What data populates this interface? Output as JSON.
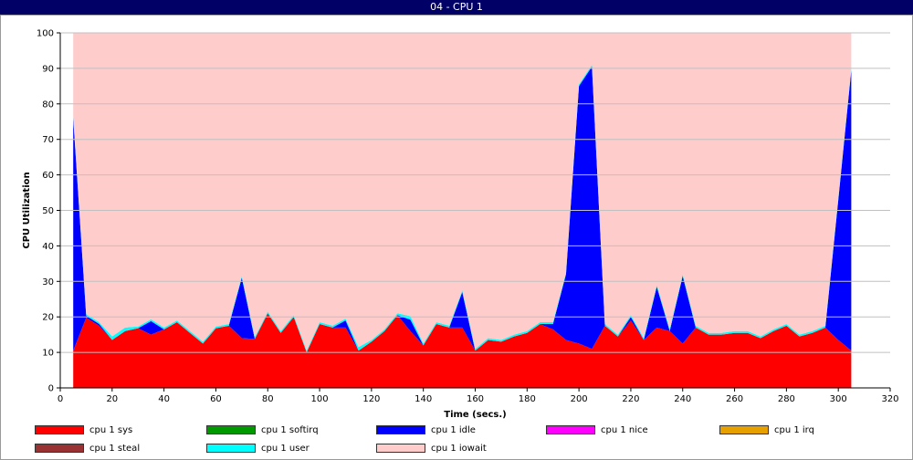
{
  "window": {
    "title": "04 - CPU 1"
  },
  "chart_data": {
    "type": "area",
    "stacked": true,
    "xlabel": "Time (secs.)",
    "ylabel": "CPU Utilization",
    "xlim": [
      0,
      320
    ],
    "ylim": [
      0,
      100
    ],
    "x_ticks": [
      0,
      20,
      40,
      60,
      80,
      100,
      120,
      140,
      160,
      180,
      200,
      220,
      240,
      260,
      280,
      300,
      320
    ],
    "y_ticks": [
      0,
      10,
      20,
      30,
      40,
      50,
      60,
      70,
      80,
      90,
      100
    ],
    "grid": true,
    "legend_position": "bottom",
    "x": [
      5,
      10,
      15,
      20,
      25,
      30,
      35,
      40,
      45,
      50,
      55,
      60,
      65,
      70,
      75,
      80,
      85,
      90,
      95,
      100,
      105,
      110,
      115,
      120,
      125,
      130,
      135,
      140,
      145,
      150,
      155,
      160,
      165,
      170,
      175,
      180,
      185,
      190,
      195,
      200,
      205,
      210,
      215,
      220,
      225,
      230,
      235,
      240,
      245,
      250,
      255,
      260,
      265,
      270,
      275,
      280,
      285,
      290,
      295,
      300,
      305
    ],
    "series": [
      {
        "name": "cpu 1 sys",
        "color": "#ff0000",
        "values": [
          10.5,
          19.8,
          17.5,
          13.5,
          16.0,
          16.8,
          15.0,
          16.5,
          18.5,
          15.5,
          12.5,
          16.8,
          17.5,
          14.0,
          13.8,
          21.0,
          15.5,
          20.0,
          10.0,
          18.0,
          17.0,
          17.0,
          10.5,
          13.0,
          16.0,
          20.5,
          16.0,
          12.0,
          18.0,
          17.0,
          17.0,
          10.5,
          13.5,
          13.0,
          14.5,
          15.5,
          18.0,
          16.5,
          13.5,
          12.5,
          11.0,
          17.5,
          14.5,
          19.0,
          13.5,
          17.0,
          16.0,
          12.5,
          17.0,
          15.0,
          15.0,
          15.5,
          15.5,
          14.0,
          16.0,
          17.5,
          14.5,
          15.5,
          17.0,
          13.5,
          10.5
        ]
      },
      {
        "name": "cpu 1 softirq",
        "color": "#009900",
        "values": [
          0,
          0,
          0,
          0,
          0,
          0,
          0,
          0,
          0,
          0,
          0,
          0,
          0,
          0,
          0,
          0,
          0,
          0,
          0,
          0,
          0,
          0,
          0,
          0,
          0,
          0,
          0,
          0,
          0,
          0,
          0,
          0,
          0,
          0,
          0,
          0,
          0,
          0,
          0,
          0,
          0,
          0,
          0,
          0,
          0,
          0,
          0,
          0,
          0,
          0,
          0,
          0,
          0,
          0,
          0,
          0,
          0,
          0,
          0,
          0,
          0
        ]
      },
      {
        "name": "cpu 1 idle",
        "color": "#0000ff",
        "values": [
          65.5,
          0.5,
          0.5,
          0,
          0,
          0,
          3.8,
          0,
          0,
          0,
          0,
          0,
          0,
          17.0,
          0,
          0,
          0,
          0,
          0,
          0,
          0,
          2.0,
          0,
          0,
          0,
          0,
          3.2,
          0,
          0,
          0,
          10.0,
          0,
          0,
          0,
          0,
          0,
          0,
          1.5,
          18.5,
          72.5,
          79.5,
          0,
          0,
          1.0,
          0,
          11.5,
          0,
          19.0,
          0,
          0,
          0,
          0,
          0,
          0,
          0,
          0,
          0,
          0,
          0,
          39.5,
          79.0
        ]
      },
      {
        "name": "cpu 1 nice",
        "color": "#ff00ff",
        "values": [
          0,
          0,
          0,
          0,
          0,
          0,
          0,
          0,
          0,
          0,
          0,
          0,
          0,
          0,
          0,
          0,
          0,
          0,
          0,
          0,
          0,
          0,
          0,
          0,
          0,
          0,
          0,
          0,
          0,
          0,
          0,
          0,
          0,
          0,
          0,
          0,
          0,
          0,
          0,
          0,
          0,
          0,
          0,
          0,
          0,
          0,
          0,
          0,
          0,
          0,
          0,
          0,
          0,
          0,
          0,
          0,
          0,
          0,
          0,
          0,
          0
        ]
      },
      {
        "name": "cpu 1 irq",
        "color": "#e6a000",
        "values": [
          0,
          0,
          0,
          0,
          0,
          0,
          0,
          0,
          0,
          0,
          0,
          0,
          0,
          0,
          0,
          0,
          0,
          0,
          0,
          0,
          0,
          0,
          0,
          0,
          0,
          0,
          0,
          0,
          0,
          0,
          0,
          0,
          0,
          0,
          0,
          0,
          0,
          0,
          0,
          0,
          0,
          0,
          0,
          0,
          0,
          0,
          0,
          0,
          0,
          0,
          0,
          0,
          0,
          0,
          0,
          0,
          0,
          0,
          0,
          0,
          0
        ]
      },
      {
        "name": "cpu 1 steal",
        "color": "#993333",
        "values": [
          0,
          0,
          0,
          0,
          0,
          0,
          0,
          0,
          0,
          0,
          0,
          0,
          0,
          0,
          0,
          0,
          0,
          0,
          0,
          0,
          0,
          0,
          0,
          0,
          0,
          0,
          0,
          0,
          0,
          0,
          0,
          0,
          0,
          0,
          0,
          0,
          0,
          0,
          0,
          0,
          0,
          0,
          0,
          0,
          0,
          0,
          0,
          0,
          0,
          0,
          0,
          0,
          0,
          0,
          0,
          0,
          0,
          0,
          0,
          0,
          0
        ]
      },
      {
        "name": "cpu 1 user",
        "color": "#00ffff",
        "values": [
          0.5,
          0.5,
          0.5,
          1.0,
          1.0,
          0.5,
          0.5,
          0.5,
          0.5,
          0.5,
          0.5,
          0.5,
          0.5,
          0.5,
          0.5,
          0.5,
          0.5,
          0.5,
          0.5,
          0.5,
          0.5,
          0.5,
          1.0,
          0.5,
          0.5,
          0.5,
          1.0,
          0.5,
          0.5,
          0.5,
          0.5,
          0.5,
          0.5,
          0.5,
          0.5,
          0.5,
          0.5,
          0.5,
          0.5,
          0.5,
          0.5,
          0.5,
          0.5,
          0.5,
          0.5,
          0.5,
          0.5,
          0.5,
          0.5,
          0.5,
          0.5,
          0.5,
          0.5,
          0.5,
          0.5,
          0.5,
          0.5,
          0.5,
          0.5,
          0.5,
          0.5
        ]
      },
      {
        "name": "cpu 1 iowait",
        "color": "#ffcccc",
        "values": [
          23.5,
          79.2,
          81.5,
          85.5,
          83.0,
          82.7,
          80.7,
          83.0,
          81.0,
          84.0,
          87.0,
          82.7,
          82.0,
          68.5,
          85.7,
          78.5,
          84.0,
          79.5,
          89.5,
          81.5,
          82.5,
          80.5,
          88.5,
          86.5,
          83.5,
          79.0,
          79.8,
          87.5,
          81.5,
          82.5,
          72.5,
          89.0,
          86.0,
          86.5,
          85.0,
          84.0,
          81.5,
          81.5,
          67.5,
          14.5,
          9.0,
          82.0,
          85.0,
          79.5,
          86.0,
          71.0,
          83.5,
          68.0,
          82.5,
          84.5,
          84.5,
          84.0,
          84.0,
          85.5,
          83.5,
          82.0,
          85.0,
          84.0,
          82.5,
          46.5,
          10.0
        ]
      }
    ]
  }
}
